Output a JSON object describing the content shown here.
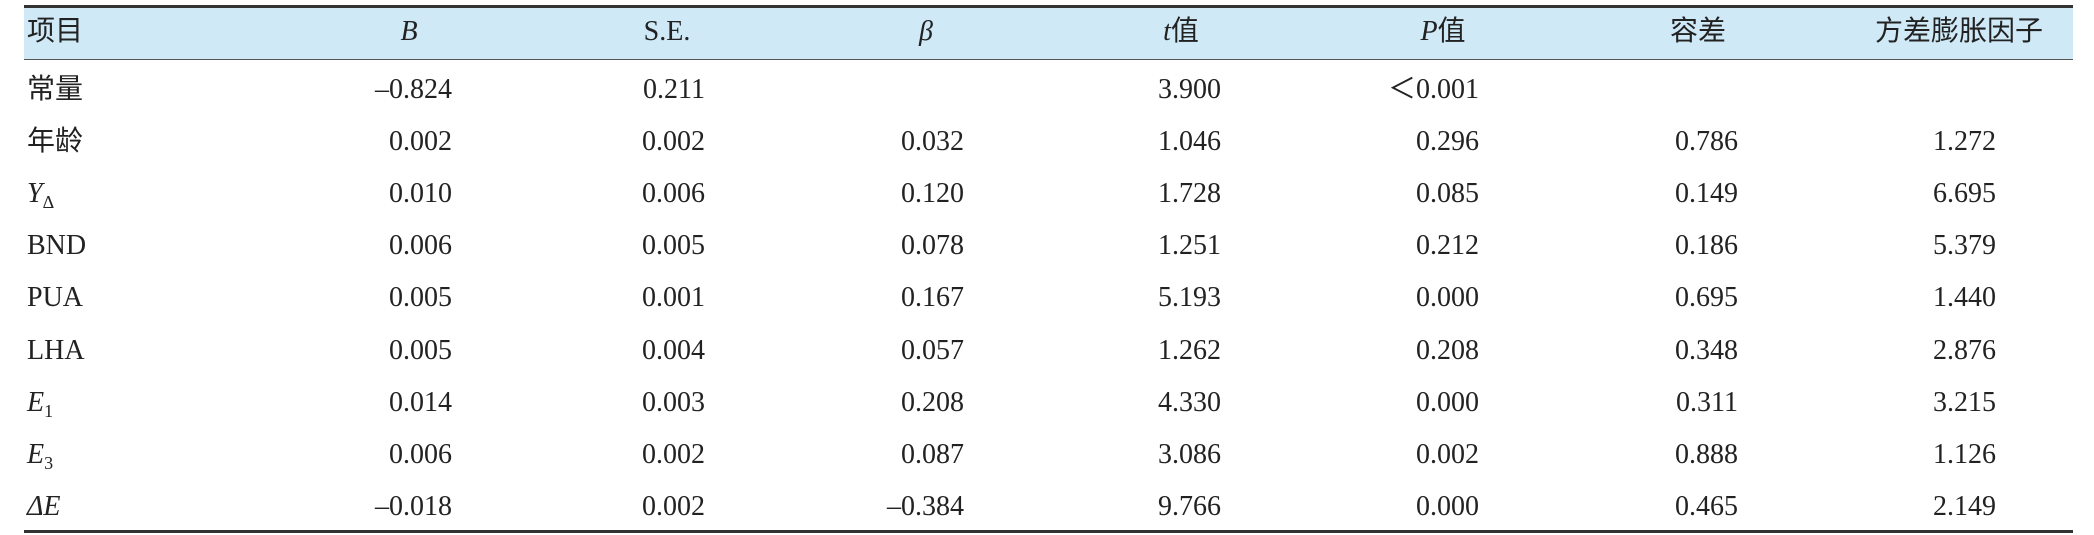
{
  "table": {
    "header": [
      {
        "text": "项目"
      },
      {
        "italic": "B"
      },
      {
        "text": "S.E."
      },
      {
        "italic": "β"
      },
      {
        "italic": "t",
        "text": "值"
      },
      {
        "italic": "P",
        "text": "值"
      },
      {
        "text": "容差"
      },
      {
        "text": "方差膨胀因子"
      }
    ],
    "rows": [
      {
        "label": {
          "text": "常量"
        },
        "cells": [
          "–0.824",
          "0.211",
          null,
          "3.900",
          "＜0.001",
          null,
          null
        ]
      },
      {
        "label": {
          "text": "年龄"
        },
        "cells": [
          "0.002",
          "0.002",
          "0.032",
          "1.046",
          "0.296",
          "0.786",
          "1.272"
        ]
      },
      {
        "label": {
          "italic": "Y",
          "sub": "Δ"
        },
        "cells": [
          "0.010",
          "0.006",
          "0.120",
          "1.728",
          "0.085",
          "0.149",
          "6.695"
        ]
      },
      {
        "label": {
          "text": "BND"
        },
        "cells": [
          "0.006",
          "0.005",
          "0.078",
          "1.251",
          "0.212",
          "0.186",
          "5.379"
        ]
      },
      {
        "label": {
          "text": "PUA"
        },
        "cells": [
          "0.005",
          "0.001",
          "0.167",
          "5.193",
          "0.000",
          "0.695",
          "1.440"
        ]
      },
      {
        "label": {
          "text": "LHA"
        },
        "cells": [
          "0.005",
          "0.004",
          "0.057",
          "1.262",
          "0.208",
          "0.348",
          "2.876"
        ]
      },
      {
        "label": {
          "italic": "E",
          "sub": "1"
        },
        "cells": [
          "0.014",
          "0.003",
          "0.208",
          "4.330",
          "0.000",
          "0.311",
          "3.215"
        ]
      },
      {
        "label": {
          "italic": "E",
          "sub": "3"
        },
        "cells": [
          "0.006",
          "0.002",
          "0.087",
          "3.086",
          "0.002",
          "0.888",
          "1.126"
        ]
      },
      {
        "label": {
          "italic": "ΔE"
        },
        "cells": [
          "–0.018",
          "0.002",
          "–0.384",
          "9.766",
          "0.000",
          "0.465",
          "2.149"
        ]
      }
    ]
  }
}
